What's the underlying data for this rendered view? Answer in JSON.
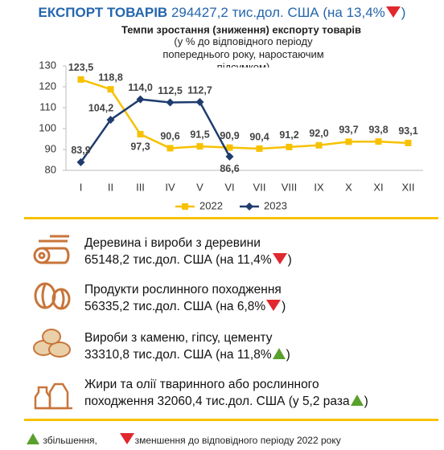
{
  "header": {
    "title": "ЕКСПОРТ ТОВАРІВ",
    "text": "294427,2 тис.дол. США (на 13,4%",
    "direction": "down",
    "close": ")"
  },
  "chart_data": {
    "type": "line",
    "title": "Темпи зростання (зниження) експорту товарів",
    "subtitle": "(у % до відповідного періоду попереднього року, наростаючим підсумком)",
    "categories": [
      "I",
      "II",
      "III",
      "IV",
      "V",
      "VI",
      "VII",
      "VIII",
      "IX",
      "X",
      "XI",
      "XII"
    ],
    "series": [
      {
        "name": "2022",
        "color": "#f7c100",
        "values": [
          123.5,
          118.8,
          97.3,
          90.6,
          91.5,
          90.9,
          90.4,
          91.2,
          92.0,
          93.7,
          93.8,
          93.1
        ],
        "value_labels": [
          "123,5",
          "118,8",
          "97,3",
          "90,6",
          "91,5",
          "90,9",
          "90,4",
          "91,2",
          "92,0",
          "93,7",
          "93,8",
          "93,1"
        ]
      },
      {
        "name": "2023",
        "color": "#1f3c6e",
        "values": [
          83.9,
          104.2,
          114.0,
          112.5,
          112.7,
          86.6,
          null,
          null,
          null,
          null,
          null,
          null
        ],
        "value_labels": [
          "83,9",
          "104,2",
          "114,0",
          "112,5",
          "112,7",
          "86,6",
          null,
          null,
          null,
          null,
          null,
          null
        ]
      }
    ],
    "ylim": [
      80,
      130
    ],
    "yticks": [
      80,
      90,
      100,
      110,
      120,
      130
    ],
    "grid": false,
    "legend": "bottom"
  },
  "items": [
    {
      "line1": "Деревина і вироби з деревини",
      "line2": "65148,2  тис.дол. США (на 11,4%",
      "direction": "down",
      "close": ")"
    },
    {
      "line1": "Продукти рослинного походження",
      "line2": "56335,2 тис.дол. США (на 6,8%",
      "direction": "down",
      "close": ")"
    },
    {
      "line1": "Вироби з каменю, гіпсу, цементу",
      "line2": "33310,8 тис.дол. США (на 11,8%",
      "direction": "up",
      "close": ")"
    },
    {
      "line1": "Жири та олії тваринного або рослинного",
      "line2": "походження 32060,4  тис.дол. США (у 5,2 раза",
      "direction": "up",
      "close": ")"
    }
  ],
  "footer": {
    "up": "збільшення,",
    "down": "зменшення до відповідного періоду 2022 року"
  }
}
